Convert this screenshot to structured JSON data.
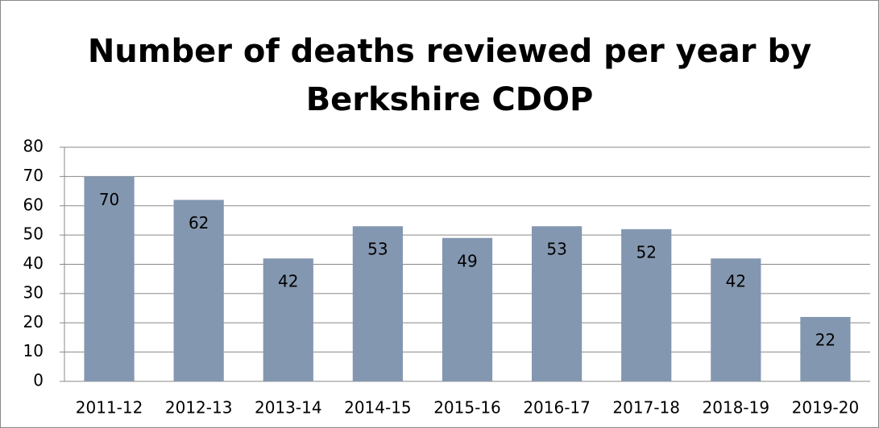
{
  "chart_data": {
    "type": "bar",
    "title": "Number of deaths reviewed per year by Berkshire CDOP",
    "categories": [
      "2011-12",
      "2012-13",
      "2013-14",
      "2014-15",
      "2015-16",
      "2016-17",
      "2017-18",
      "2018-19",
      "2019-20"
    ],
    "values": [
      70,
      62,
      42,
      53,
      49,
      53,
      52,
      42,
      22
    ],
    "color": "#8497b0",
    "ylim": [
      0,
      80
    ],
    "yticks": [
      0,
      10,
      20,
      30,
      40,
      50,
      60,
      70,
      80
    ],
    "grid": true
  }
}
